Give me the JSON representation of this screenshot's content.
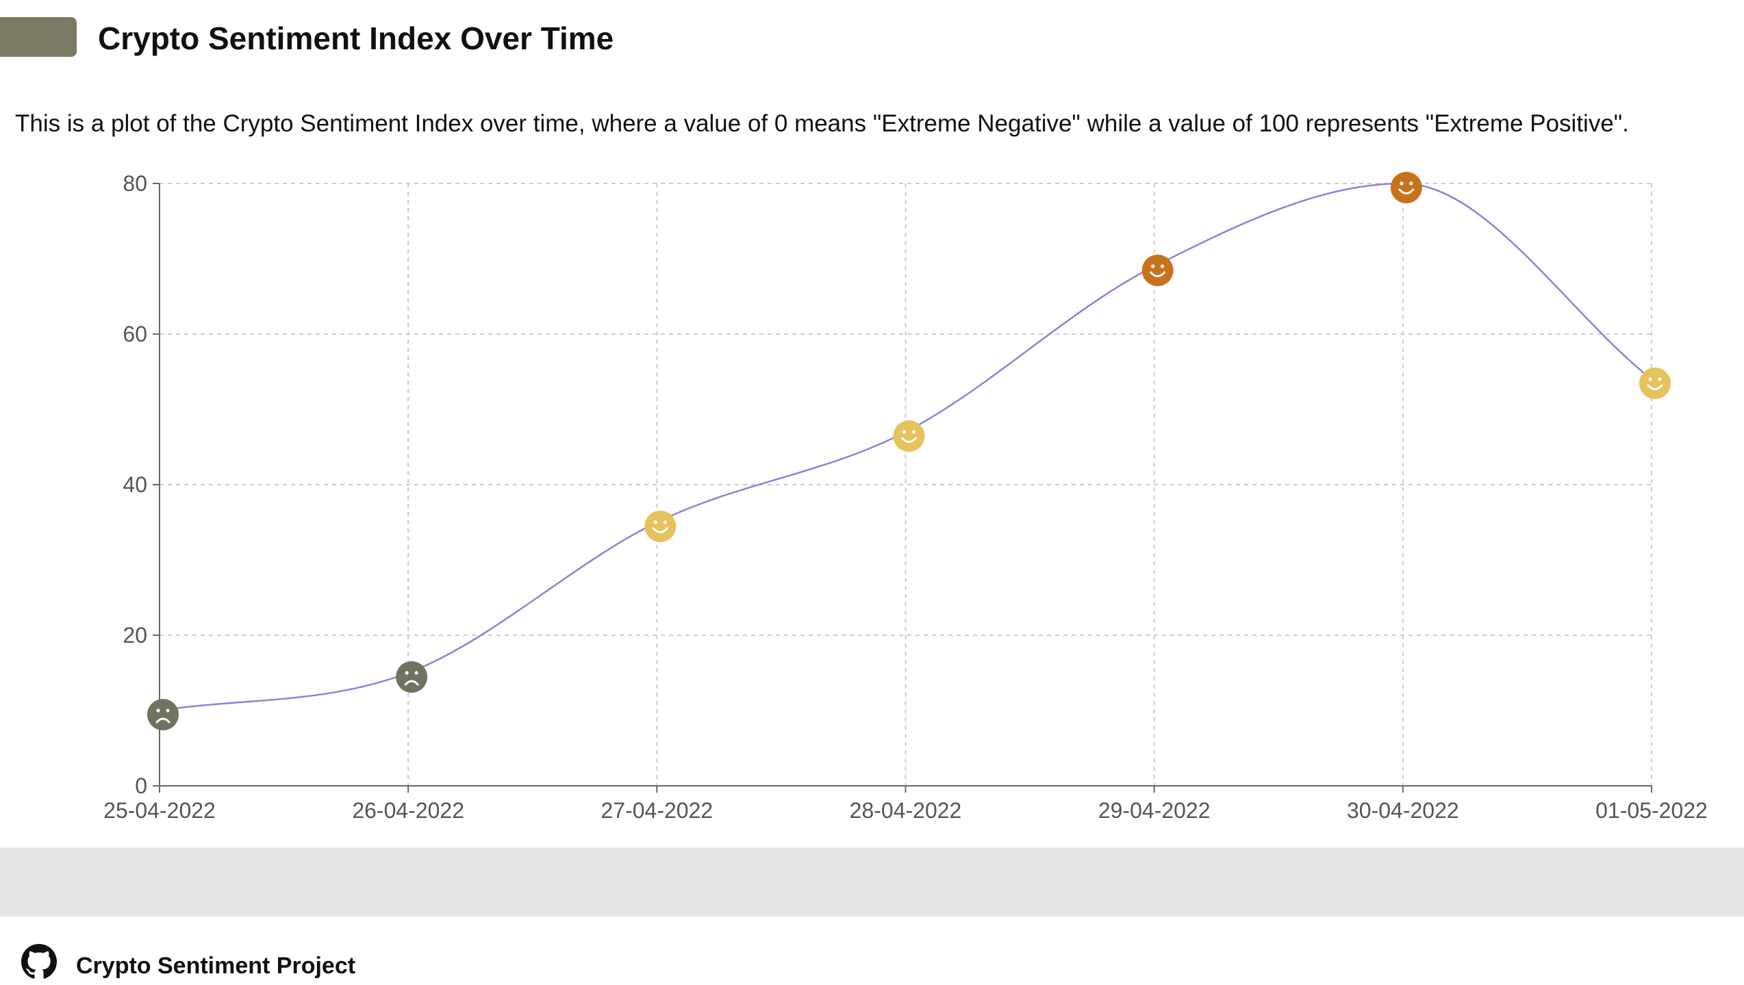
{
  "header": {
    "title": "Crypto Sentiment Index Over Time"
  },
  "description": "This is a plot of the Crypto Sentiment Index over time, where a value of 0 means \"Extreme Negative\" while a value of 100 represents \"Extreme Positive\".",
  "footer": {
    "link_label": "Crypto Sentiment Project",
    "icon": "github-icon"
  },
  "colors": {
    "logo": "#7a7a62",
    "line": "#8884d8",
    "negative": "#727260",
    "neutral_positive": "#e6c35c",
    "strong_positive": "#c8731c",
    "grid": "#cccccc",
    "band": "#e6e6e6"
  },
  "chart_data": {
    "type": "line",
    "title": "",
    "xlabel": "",
    "ylabel": "",
    "ylim": [
      0,
      80
    ],
    "yticks": [
      "0",
      "20",
      "40",
      "60",
      "80"
    ],
    "grid": true,
    "curve": "smooth",
    "series": [
      {
        "categories": [
          "25-04-2022",
          "26-04-2022",
          "27-04-2022",
          "28-04-2022",
          "29-04-2022",
          "30-04-2022",
          "01-05-2022"
        ],
        "values": [
          10,
          15,
          35,
          47,
          69,
          80,
          54
        ],
        "markers": [
          "sad",
          "sad",
          "smile",
          "smile",
          "smile",
          "smile",
          "smile"
        ],
        "marker_colors": [
          "#727260",
          "#727260",
          "#e6c35c",
          "#e6c35c",
          "#c8731c",
          "#c8731c",
          "#e6c35c"
        ]
      }
    ]
  }
}
